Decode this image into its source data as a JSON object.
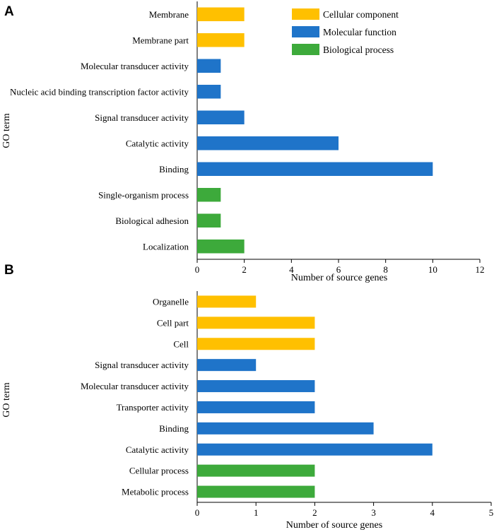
{
  "colors": {
    "cellular_component": "#FFC000",
    "molecular_function": "#1F74C9",
    "biological_process": "#3DAA3B"
  },
  "chart_data": [
    {
      "panel": "A",
      "type": "bar",
      "orientation": "horizontal",
      "xlabel": "Number of source genes",
      "ylabel": "GO term",
      "xlim": [
        0,
        12
      ],
      "xticks": [
        0,
        2,
        4,
        6,
        8,
        10,
        12
      ],
      "legend": {
        "placement": "top-right",
        "entries": [
          {
            "label": "Cellular component",
            "group": "cellular_component"
          },
          {
            "label": "Molecular function",
            "group": "molecular_function"
          },
          {
            "label": "Biological process",
            "group": "biological_process"
          }
        ]
      },
      "bars": [
        {
          "label": "Membrane",
          "value": 2,
          "group": "cellular_component"
        },
        {
          "label": "Membrane part",
          "value": 2,
          "group": "cellular_component"
        },
        {
          "label": "Molecular transducer activity",
          "value": 1,
          "group": "molecular_function"
        },
        {
          "label": "Nucleic acid binding transcription factor activity",
          "value": 1,
          "group": "molecular_function"
        },
        {
          "label": "Signal transducer activity",
          "value": 2,
          "group": "molecular_function"
        },
        {
          "label": "Catalytic activity",
          "value": 6,
          "group": "molecular_function"
        },
        {
          "label": "Binding",
          "value": 10,
          "group": "molecular_function"
        },
        {
          "label": "Single-organism process",
          "value": 1,
          "group": "biological_process"
        },
        {
          "label": "Biological adhesion",
          "value": 1,
          "group": "biological_process"
        },
        {
          "label": "Localization",
          "value": 2,
          "group": "biological_process"
        }
      ]
    },
    {
      "panel": "B",
      "type": "bar",
      "orientation": "horizontal",
      "xlabel": "Number of source genes",
      "ylabel": "GO term",
      "xlim": [
        0,
        5
      ],
      "xticks": [
        0,
        1,
        2,
        3,
        4,
        5
      ],
      "bars": [
        {
          "label": "Organelle",
          "value": 1,
          "group": "cellular_component"
        },
        {
          "label": "Cell part",
          "value": 2,
          "group": "cellular_component"
        },
        {
          "label": "Cell",
          "value": 2,
          "group": "cellular_component"
        },
        {
          "label": "Signal transducer activity",
          "value": 1,
          "group": "molecular_function"
        },
        {
          "label": "Molecular transducer activity",
          "value": 2,
          "group": "molecular_function"
        },
        {
          "label": "Transporter activity",
          "value": 2,
          "group": "molecular_function"
        },
        {
          "label": "Binding",
          "value": 3,
          "group": "molecular_function"
        },
        {
          "label": "Catalytic activity",
          "value": 4,
          "group": "molecular_function"
        },
        {
          "label": "Cellular process",
          "value": 2,
          "group": "biological_process"
        },
        {
          "label": "Metabolic process",
          "value": 2,
          "group": "biological_process"
        }
      ]
    }
  ]
}
